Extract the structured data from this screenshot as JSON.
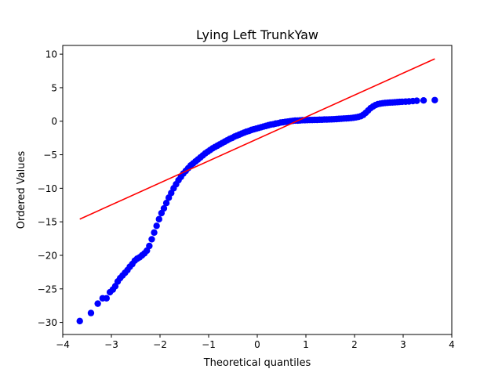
{
  "chart_data": {
    "type": "scatter",
    "title": "Lying Left TrunkYaw",
    "xlabel": "Theoretical quantiles",
    "ylabel": "Ordered Values",
    "xlim": [
      -4,
      4
    ],
    "ylim": [
      -31.8,
      11.3
    ],
    "xticks": [
      -4,
      -3,
      -2,
      -1,
      0,
      1,
      2,
      3,
      4
    ],
    "yticks": [
      -30,
      -25,
      -20,
      -15,
      -10,
      -5,
      0,
      5,
      10
    ],
    "grid": false,
    "legend": "none",
    "series": [
      {
        "kind": "points",
        "color": "#0000ff",
        "points": [
          [
            -3.65,
            -29.8
          ],
          [
            -3.42,
            -28.6
          ],
          [
            -3.28,
            -27.2
          ],
          [
            -3.18,
            -26.4
          ],
          [
            -3.1,
            -26.4
          ],
          [
            -3.03,
            -25.5
          ],
          [
            -2.97,
            -25.1
          ],
          [
            -2.92,
            -24.6
          ],
          [
            -2.87,
            -23.9
          ],
          [
            -2.82,
            -23.4
          ],
          [
            -2.77,
            -23.0
          ],
          [
            -2.72,
            -22.6
          ],
          [
            -2.67,
            -22.2
          ],
          [
            -2.62,
            -21.7
          ],
          [
            -2.57,
            -21.3
          ],
          [
            -2.52,
            -20.8
          ],
          [
            -2.47,
            -20.5
          ],
          [
            -2.42,
            -20.3
          ],
          [
            -2.37,
            -20.0
          ],
          [
            -2.32,
            -19.7
          ],
          [
            -2.27,
            -19.3
          ],
          [
            -2.22,
            -18.6
          ],
          [
            -2.17,
            -17.6
          ],
          [
            -2.12,
            -16.6
          ],
          [
            -2.07,
            -15.6
          ],
          [
            -2.02,
            -14.6
          ],
          [
            -1.97,
            -13.7
          ],
          [
            -1.92,
            -13.0
          ],
          [
            -1.87,
            -12.2
          ],
          [
            -1.82,
            -11.4
          ],
          [
            -1.77,
            -10.7
          ],
          [
            -1.72,
            -10.0
          ],
          [
            -1.67,
            -9.4
          ],
          [
            -1.62,
            -8.8
          ],
          [
            -1.57,
            -8.3
          ],
          [
            -1.52,
            -7.8
          ],
          [
            -1.47,
            -7.4
          ],
          [
            -1.42,
            -7.0
          ],
          [
            -1.37,
            -6.6
          ],
          [
            -1.32,
            -6.3
          ],
          [
            -1.27,
            -6.0
          ],
          [
            -1.22,
            -5.7
          ],
          [
            -1.17,
            -5.4
          ],
          [
            -1.12,
            -5.1
          ],
          [
            -1.07,
            -4.8
          ],
          [
            -1.02,
            -4.55
          ],
          [
            -0.97,
            -4.3
          ],
          [
            -0.92,
            -4.05
          ],
          [
            -0.87,
            -3.85
          ],
          [
            -0.82,
            -3.65
          ],
          [
            -0.77,
            -3.45
          ],
          [
            -0.72,
            -3.25
          ],
          [
            -0.67,
            -3.05
          ],
          [
            -0.62,
            -2.85
          ],
          [
            -0.57,
            -2.65
          ],
          [
            -0.52,
            -2.5
          ],
          [
            -0.47,
            -2.3
          ],
          [
            -0.42,
            -2.15
          ],
          [
            -0.37,
            -2.0
          ],
          [
            -0.32,
            -1.85
          ],
          [
            -0.27,
            -1.7
          ],
          [
            -0.22,
            -1.55
          ],
          [
            -0.17,
            -1.45
          ],
          [
            -0.12,
            -1.3
          ],
          [
            -0.07,
            -1.2
          ],
          [
            -0.02,
            -1.1
          ],
          [
            0.03,
            -1.0
          ],
          [
            0.08,
            -0.9
          ],
          [
            0.13,
            -0.8
          ],
          [
            0.18,
            -0.7
          ],
          [
            0.23,
            -0.6
          ],
          [
            0.28,
            -0.5
          ],
          [
            0.33,
            -0.45
          ],
          [
            0.38,
            -0.35
          ],
          [
            0.43,
            -0.3
          ],
          [
            0.48,
            -0.2
          ],
          [
            0.53,
            -0.15
          ],
          [
            0.58,
            -0.1
          ],
          [
            0.63,
            -0.05
          ],
          [
            0.68,
            0.0
          ],
          [
            0.73,
            0.05
          ],
          [
            0.78,
            0.1
          ],
          [
            0.83,
            0.1
          ],
          [
            0.88,
            0.12
          ],
          [
            0.93,
            0.15
          ],
          [
            0.98,
            0.15
          ],
          [
            1.03,
            0.17
          ],
          [
            1.08,
            0.18
          ],
          [
            1.13,
            0.18
          ],
          [
            1.18,
            0.2
          ],
          [
            1.23,
            0.2
          ],
          [
            1.28,
            0.22
          ],
          [
            1.33,
            0.22
          ],
          [
            1.38,
            0.25
          ],
          [
            1.43,
            0.25
          ],
          [
            1.48,
            0.27
          ],
          [
            1.53,
            0.28
          ],
          [
            1.58,
            0.3
          ],
          [
            1.63,
            0.32
          ],
          [
            1.68,
            0.35
          ],
          [
            1.73,
            0.37
          ],
          [
            1.78,
            0.4
          ],
          [
            1.83,
            0.42
          ],
          [
            1.88,
            0.45
          ],
          [
            1.93,
            0.48
          ],
          [
            1.98,
            0.52
          ],
          [
            2.03,
            0.58
          ],
          [
            2.08,
            0.65
          ],
          [
            2.13,
            0.75
          ],
          [
            2.18,
            0.95
          ],
          [
            2.23,
            1.25
          ],
          [
            2.28,
            1.6
          ],
          [
            2.33,
            1.95
          ],
          [
            2.38,
            2.2
          ],
          [
            2.43,
            2.4
          ],
          [
            2.48,
            2.55
          ],
          [
            2.53,
            2.62
          ],
          [
            2.58,
            2.68
          ],
          [
            2.63,
            2.72
          ],
          [
            2.68,
            2.75
          ],
          [
            2.73,
            2.78
          ],
          [
            2.78,
            2.8
          ],
          [
            2.83,
            2.82
          ],
          [
            2.88,
            2.85
          ],
          [
            2.93,
            2.88
          ],
          [
            2.98,
            2.9
          ],
          [
            3.05,
            2.92
          ],
          [
            3.12,
            2.95
          ],
          [
            3.2,
            3.0
          ],
          [
            3.28,
            3.05
          ],
          [
            3.42,
            3.1
          ],
          [
            3.65,
            3.15
          ]
        ]
      },
      {
        "kind": "fit-line",
        "color": "#ff0000",
        "points": [
          [
            -3.65,
            -14.6
          ],
          [
            3.65,
            9.3
          ]
        ]
      }
    ]
  }
}
